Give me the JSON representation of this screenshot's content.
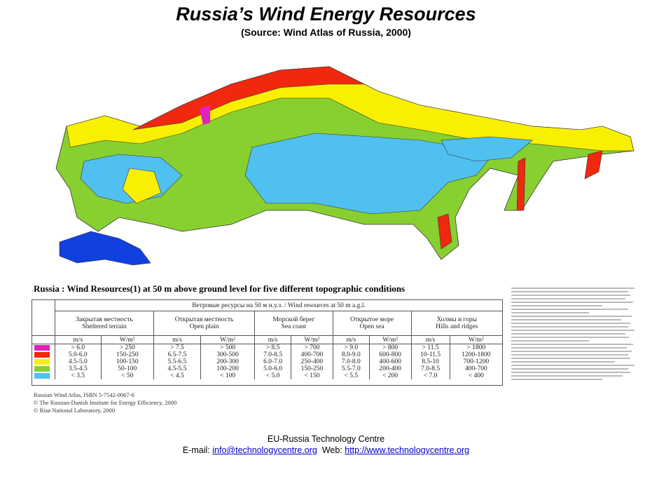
{
  "header": {
    "title": "Russia’s Wind Energy Resources",
    "subtitle": "(Source: Wind Atlas of Russia, 2000)"
  },
  "map": {
    "caption": "Russia :  Wind Resources(1) at 50 m above ground level for five different topographic conditions"
  },
  "table": {
    "title": "Ветровые ресурсы на 50 м н.у.з. / Wind resources at 50 m a.g.l.",
    "columns": [
      {
        "ru": "Закрытая местность",
        "en": "Sheltered terrain"
      },
      {
        "ru": "Открытая местность",
        "en": "Open plain"
      },
      {
        "ru": "Морской берег",
        "en": "Sea coast"
      },
      {
        "ru": "Открытое море",
        "en": "Open sea"
      },
      {
        "ru": "Холмы и горы",
        "en": "Hills and ridges"
      }
    ],
    "units": [
      "m/s",
      "W/m²"
    ],
    "rows": [
      {
        "color": "#e020c0",
        "cells": [
          [
            "> 6.0",
            "> 250"
          ],
          [
            "> 7.5",
            "> 500"
          ],
          [
            "> 8.5",
            "> 700"
          ],
          [
            "> 9.0",
            "> 800"
          ],
          [
            "> 11.5",
            "> 1800"
          ]
        ]
      },
      {
        "color": "#f02810",
        "cells": [
          [
            "5.0-6.0",
            "150-250"
          ],
          [
            "6.5-7.5",
            "300-500"
          ],
          [
            "7.0-8.5",
            "400-700"
          ],
          [
            "8.0-9.0",
            "600-800"
          ],
          [
            "10-11.5",
            "1200-1800"
          ]
        ]
      },
      {
        "color": "#f8f000",
        "cells": [
          [
            "4.5-5.0",
            "100-150"
          ],
          [
            "5.5-6.5",
            "200-300"
          ],
          [
            "6.0-7.0",
            "250-400"
          ],
          [
            "7.0-8.0",
            "400-600"
          ],
          [
            "8.5-10",
            "700-1200"
          ]
        ]
      },
      {
        "color": "#88d030",
        "cells": [
          [
            "3.5-4.5",
            "50-100"
          ],
          [
            "4.5-5.5",
            "100-200"
          ],
          [
            "5.0-6.0",
            "150-250"
          ],
          [
            "5.5-7.0",
            "200-400"
          ],
          [
            "7.0-8.5",
            "400-700"
          ]
        ]
      },
      {
        "color": "#50c0f0",
        "cells": [
          [
            "< 3.5",
            "< 50"
          ],
          [
            "< 4.5",
            "< 100"
          ],
          [
            "< 5.0",
            "< 150"
          ],
          [
            "< 5.5",
            "< 200"
          ],
          [
            "< 7.0",
            "< 400"
          ]
        ]
      }
    ]
  },
  "sources": [
    "Russian Wind Atlas, ISBN 5-7542-0067-6",
    "© The Russian-Danish Institute for Energy Efficiency, 2000",
    "© Risø National Laboratory, 2000"
  ],
  "footer": {
    "organization": "EU-Russia Technology Centre",
    "email_label": "E-mail:",
    "email": "info@technologycentre.org",
    "web_label": "Web:",
    "web": "http://www.technologycentre.org"
  }
}
